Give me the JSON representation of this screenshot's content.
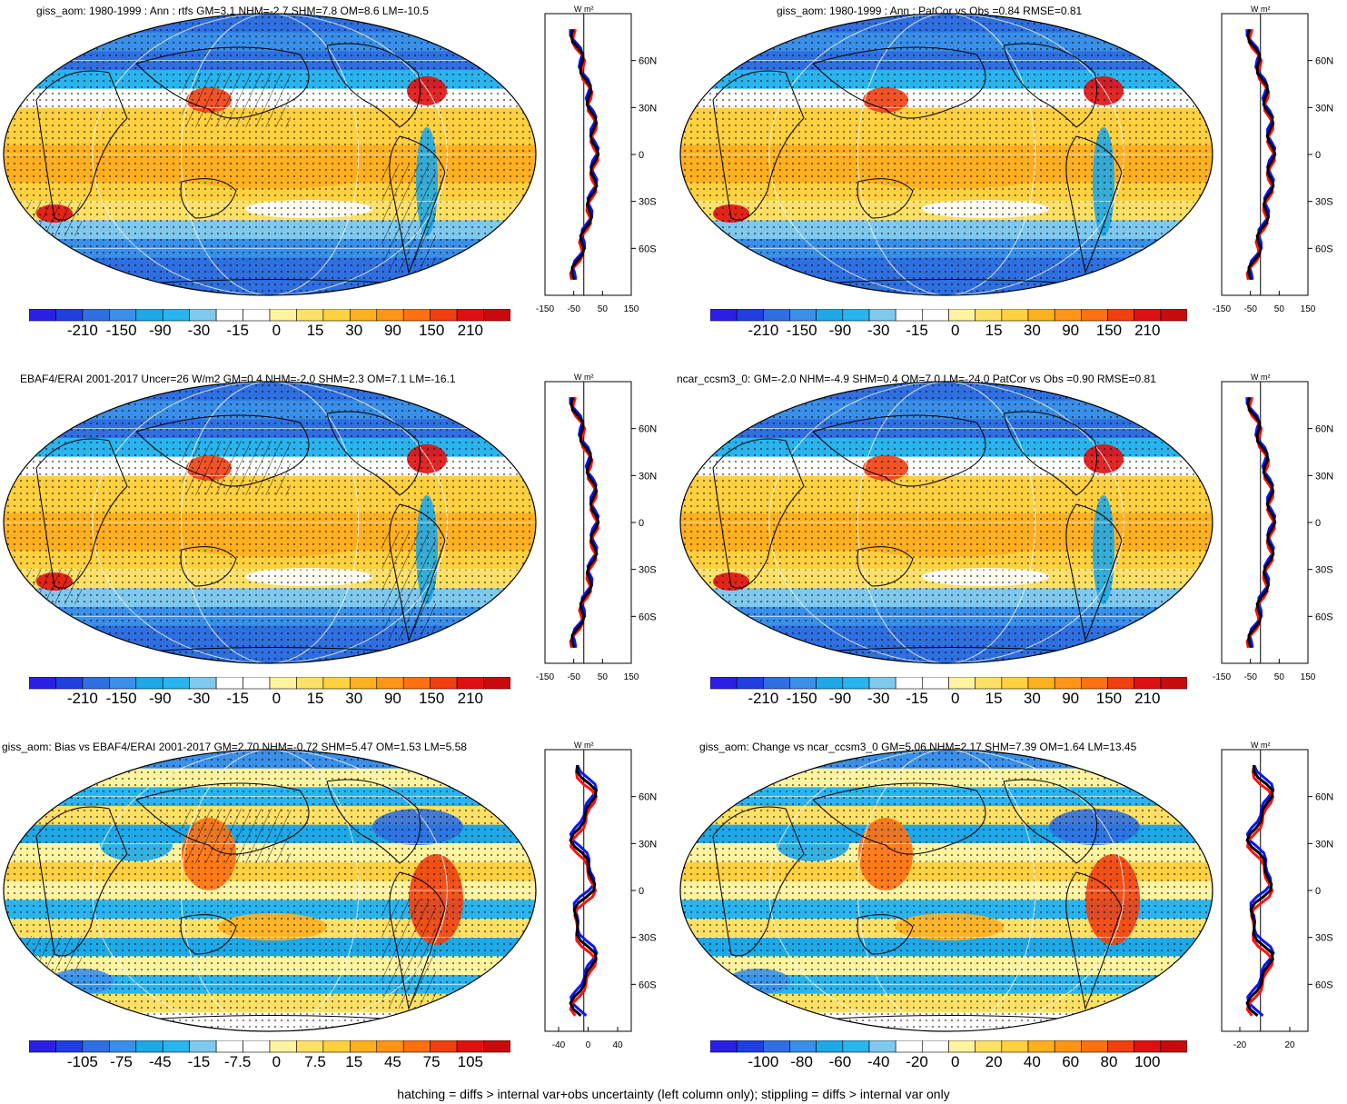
{
  "panels": [
    {
      "id": "p1",
      "title": "giss_aom: 1980-1999 : Ann : rtfs GM=3.1 NHM=-2.7 SHM=7.8 OM=8.6 LM=-10.5",
      "colorbar": [
        "-210",
        "-150",
        "-90",
        "-30",
        "-15",
        "0",
        "15",
        "30",
        "90",
        "150",
        "210"
      ],
      "scale": "large",
      "zonal_units": "W m²",
      "zonal_xticks": [
        "-150",
        "-50",
        "50",
        "150"
      ],
      "zonal_yticks": [
        "60N",
        "30N",
        "0",
        "30S",
        "60S"
      ],
      "hatch": true
    },
    {
      "id": "p2",
      "title": "giss_aom: 1980-1999 : Ann : PatCor vs Obs =0.84 RMSE=0.81",
      "colorbar": [
        "-210",
        "-150",
        "-90",
        "-30",
        "-15",
        "0",
        "15",
        "30",
        "90",
        "150",
        "210"
      ],
      "scale": "large",
      "zonal_units": "W m²",
      "zonal_xticks": [
        "-150",
        "-50",
        "50",
        "150"
      ],
      "zonal_yticks": [
        "60N",
        "30N",
        "0",
        "30S",
        "60S"
      ],
      "hatch": false
    },
    {
      "id": "p3",
      "title": "EBAF4/ERAI 2001-2017 Uncer=26 W/m2 GM=0.4 NHM=-2.0 SHM=2.3 OM=7.1 LM=-16.1",
      "colorbar": [
        "-210",
        "-150",
        "-90",
        "-30",
        "-15",
        "0",
        "15",
        "30",
        "90",
        "150",
        "210"
      ],
      "scale": "large",
      "zonal_units": "W m²",
      "zonal_xticks": [
        "-150",
        "-50",
        "50",
        "150"
      ],
      "zonal_yticks": [
        "60N",
        "30N",
        "0",
        "30S",
        "60S"
      ],
      "hatch": true
    },
    {
      "id": "p4",
      "title": "ncar_ccsm3_0: GM=-2.0 NHM=-4.9 SHM=0.4 OM=7.0 LM=-24.0 PatCor vs Obs =0.90 RMSE=0.81",
      "colorbar": [
        "-210",
        "-150",
        "-90",
        "-30",
        "-15",
        "0",
        "15",
        "30",
        "90",
        "150",
        "210"
      ],
      "scale": "large",
      "zonal_units": "W m²",
      "zonal_xticks": [
        "-150",
        "-50",
        "50",
        "150"
      ],
      "zonal_yticks": [
        "60N",
        "30N",
        "0",
        "30S",
        "60S"
      ],
      "hatch": false
    },
    {
      "id": "p5",
      "title": "giss_aom: Bias vs EBAF4/ERAI 2001-2017 GM=2.70 NHM=-0.72 SHM=5.47 OM=1.53 LM=5.58",
      "colorbar": [
        "-105",
        "-75",
        "-45",
        "-15",
        "-7.5",
        "0",
        "7.5",
        "15",
        "45",
        "75",
        "105"
      ],
      "scale": "diff",
      "zonal_units": "W m²",
      "zonal_xticks": [
        "-40",
        "0",
        "40"
      ],
      "zonal_yticks": [
        "60N",
        "30N",
        "0",
        "30S",
        "60S"
      ],
      "hatch": true
    },
    {
      "id": "p6",
      "title": "giss_aom: Change vs ncar_ccsm3_0 GM=5.06 NHM=2.17 SHM=7.39 OM=1.64 LM=13.45",
      "colorbar": [
        "-100",
        "-80",
        "-60",
        "-40",
        "-20",
        "0",
        "20",
        "40",
        "60",
        "80",
        "100"
      ],
      "scale": "diff",
      "zonal_units": "W m²",
      "zonal_xticks": [
        "-20",
        "20"
      ],
      "zonal_yticks": [
        "60N",
        "30N",
        "0",
        "30S",
        "60S"
      ],
      "hatch": false
    }
  ],
  "palette": [
    "#2b1fe6",
    "#1f3fe0",
    "#2f6fe0",
    "#3a8fe8",
    "#1fa8e6",
    "#29b4ee",
    "#7fc8ee",
    "#ffffff",
    "#ffffff",
    "#fff3a0",
    "#ffe066",
    "#ffd040",
    "#ffb020",
    "#ff9418",
    "#ff7010",
    "#f04010",
    "#e01010",
    "#c80a0a"
  ],
  "zonal_series_colors": {
    "model": "#ff1010",
    "obs": "#0a14ff",
    "other": "#000000"
  },
  "footer": "hatching = diffs > internal var+obs uncertainty (left column only); stippling = diffs > internal var only"
}
